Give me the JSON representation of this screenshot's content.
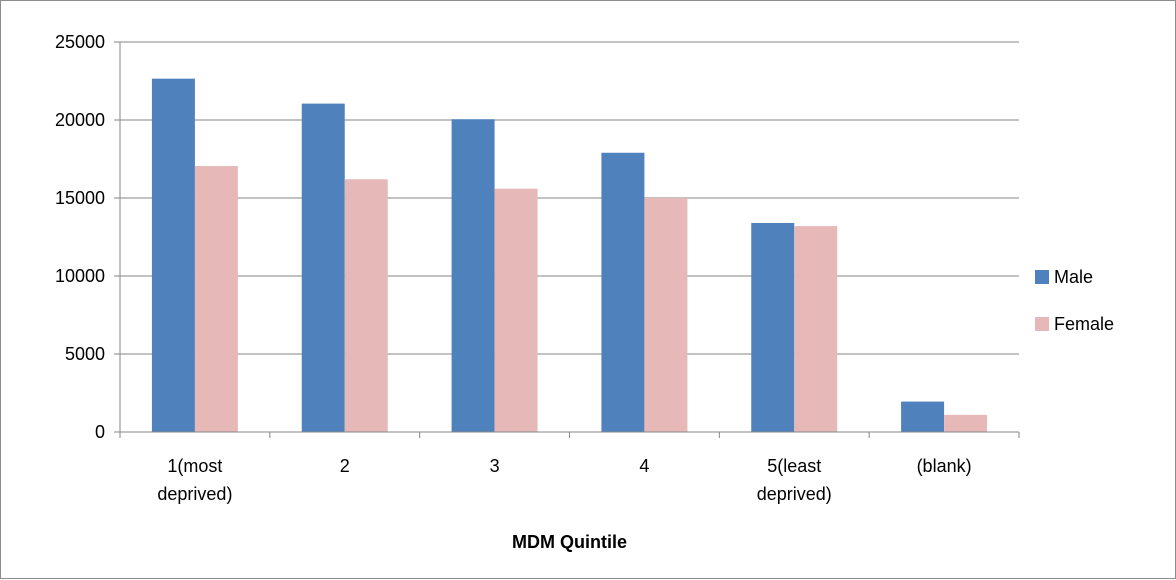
{
  "chart_data": {
    "type": "bar",
    "xlabel": "MDM Quintile",
    "ylabel": "",
    "ylim": [
      0,
      25000
    ],
    "yticks": [
      0,
      5000,
      10000,
      15000,
      20000,
      25000
    ],
    "categories": [
      [
        "1(most",
        "deprived)"
      ],
      [
        "2"
      ],
      [
        "3"
      ],
      [
        "4"
      ],
      [
        "5(least",
        "deprived)"
      ],
      [
        "(blank)"
      ]
    ],
    "series": [
      {
        "name": "Male",
        "color": "#4f81bd",
        "values": [
          22650,
          21050,
          20050,
          17900,
          13400,
          1950
        ]
      },
      {
        "name": "Female",
        "color": "#e6b9b8",
        "values": [
          17050,
          16200,
          15600,
          15000,
          13200,
          1100
        ]
      }
    ],
    "grid": true,
    "legend_position": "right"
  }
}
